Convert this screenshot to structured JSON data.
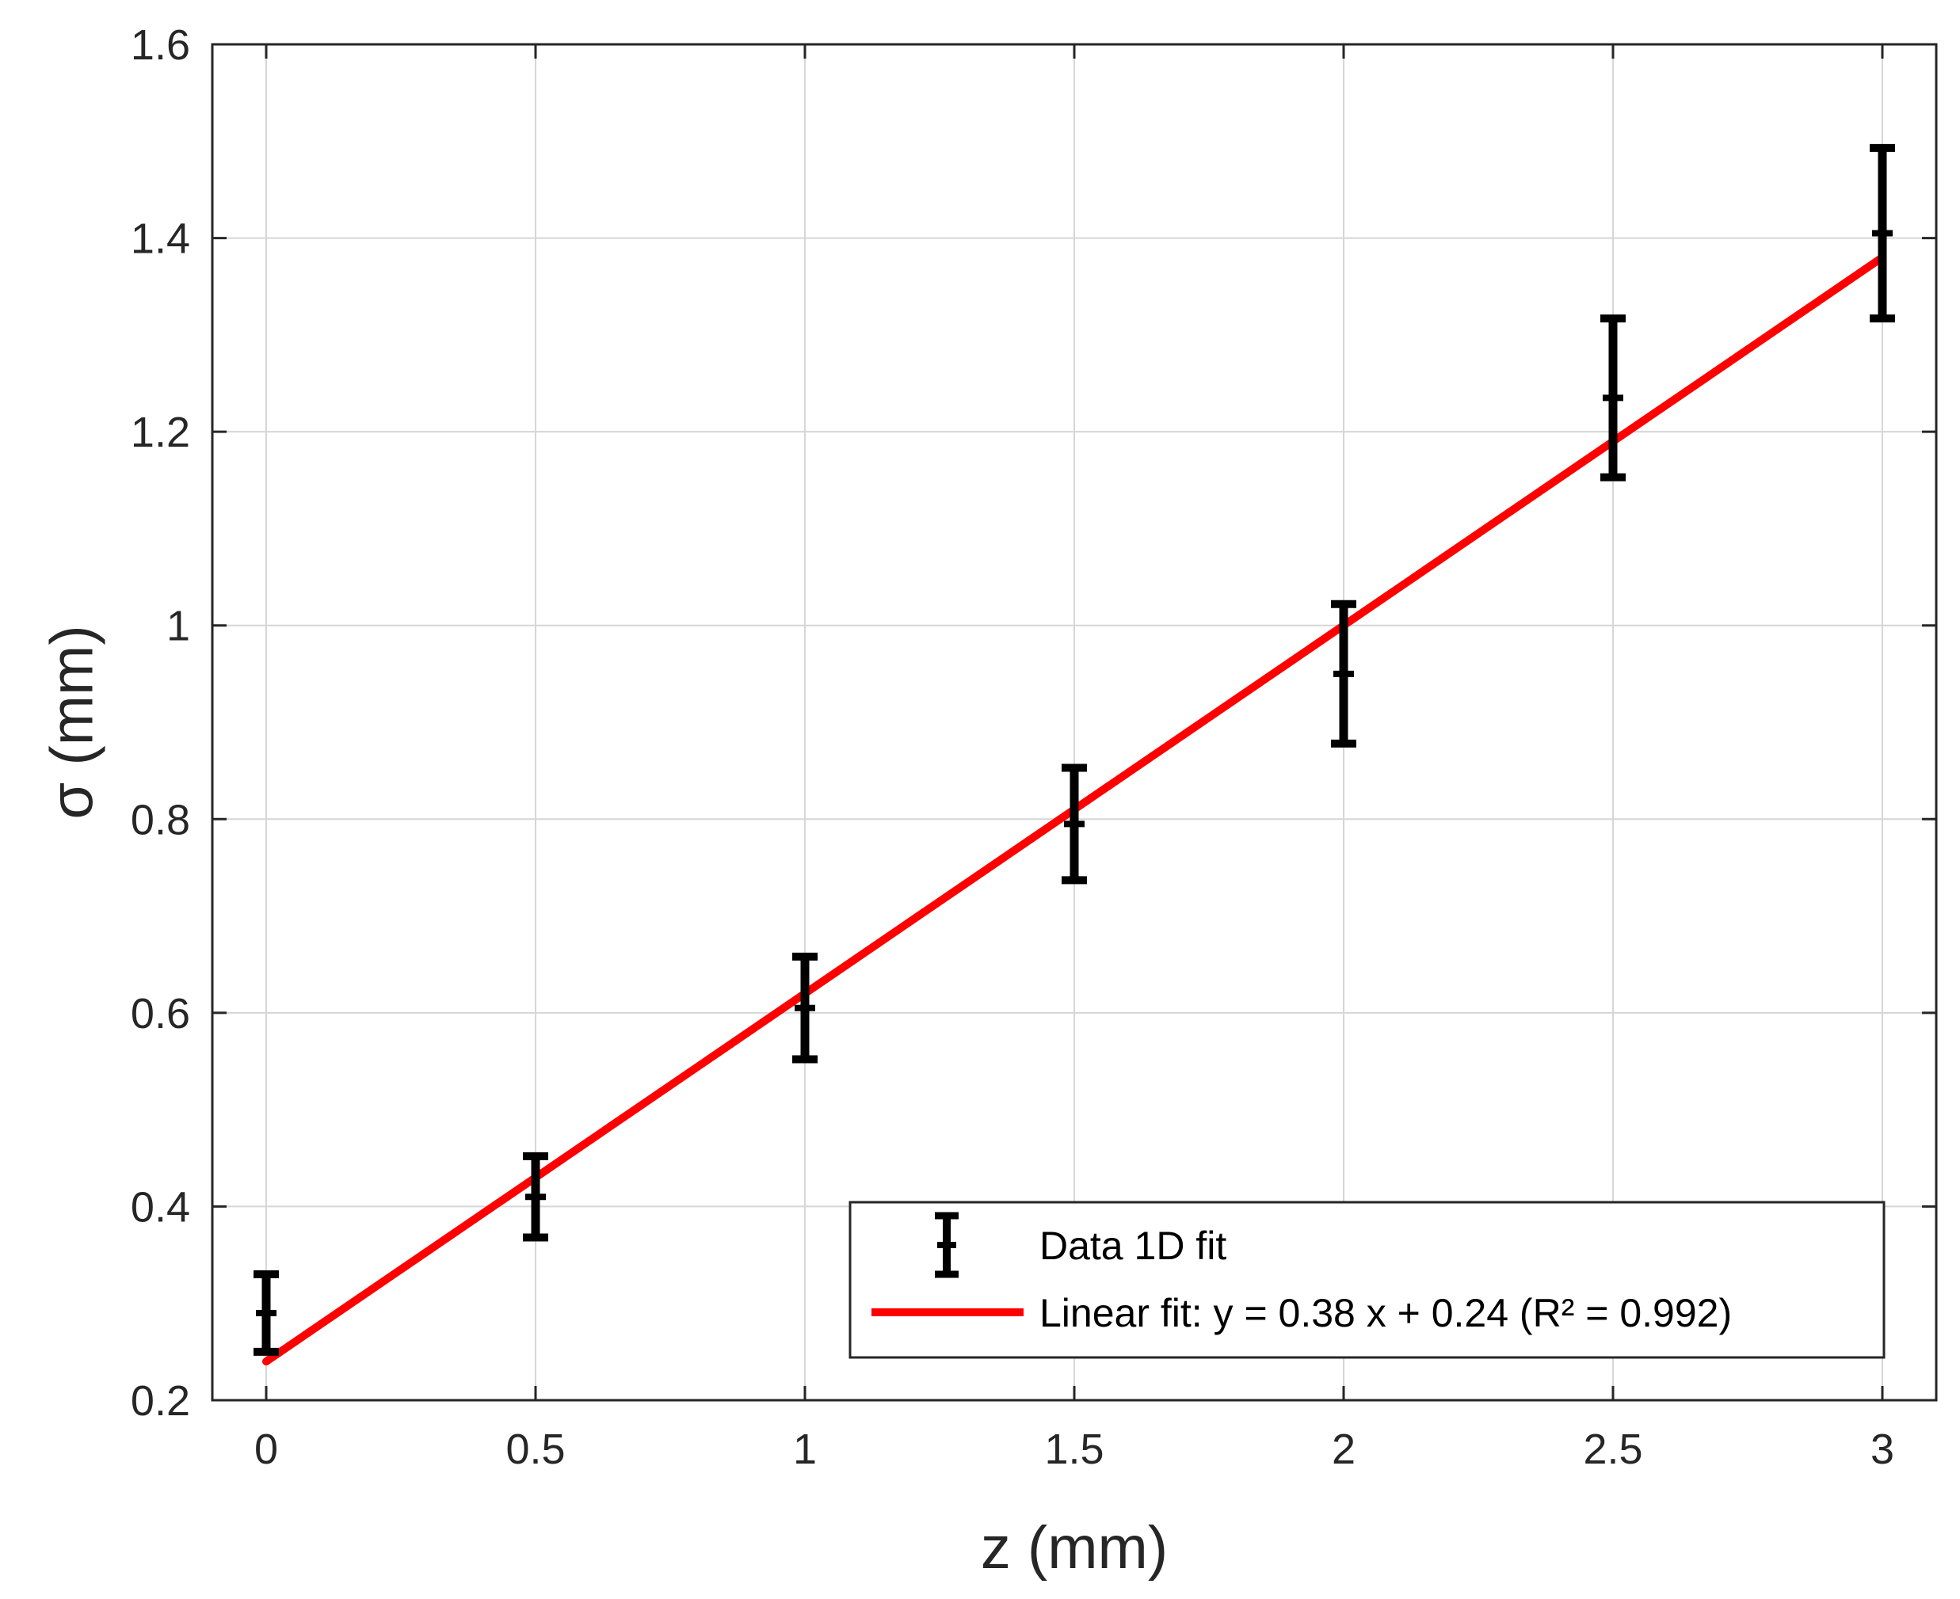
{
  "chart_data": {
    "type": "scatter",
    "xlabel": "z (mm)",
    "ylabel": "σ (mm)",
    "xlim": [
      -0.1,
      3.1
    ],
    "ylim": [
      0.2,
      1.6
    ],
    "x_ticks": [
      "0",
      "0.5",
      "1",
      "1.5",
      "2",
      "2.5",
      "3"
    ],
    "x_tick_values": [
      0,
      0.5,
      1,
      1.5,
      2,
      2.5,
      3
    ],
    "y_ticks": [
      "0.2",
      "0.4",
      "0.6",
      "0.8",
      "1",
      "1.2",
      "1.4",
      "1.6"
    ],
    "y_tick_values": [
      0.2,
      0.4,
      0.6,
      0.8,
      1.0,
      1.2,
      1.4,
      1.6
    ],
    "grid": true,
    "legend_position": "bottom-right",
    "series": [
      {
        "name": "Data 1D fit",
        "kind": "errorbar",
        "color": "#000000",
        "x": [
          0,
          0.5,
          1,
          1.5,
          2,
          2.5,
          3
        ],
        "y": [
          0.29,
          0.41,
          0.605,
          0.795,
          0.95,
          1.235,
          1.405
        ],
        "error": [
          0.04,
          0.042,
          0.053,
          0.058,
          0.072,
          0.082,
          0.088
        ]
      },
      {
        "name": "Linear fit: y = 0.38 x + 0.24 (R² = 0.992)",
        "kind": "line",
        "color": "#ff0000",
        "x": [
          0,
          3
        ],
        "y": [
          0.24,
          1.38
        ]
      }
    ]
  }
}
